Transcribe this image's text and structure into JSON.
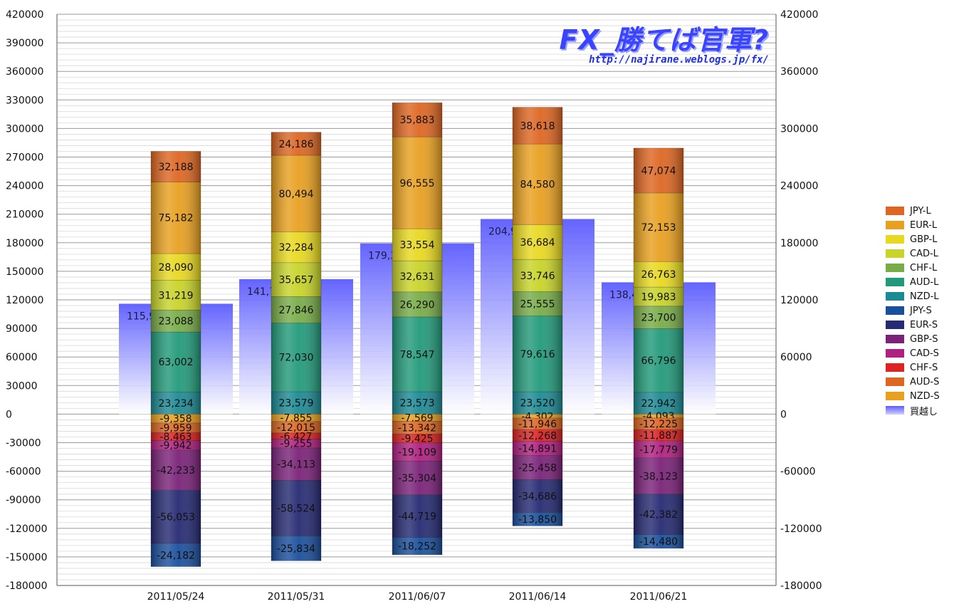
{
  "brand": {
    "title": "FX_勝てば官軍?",
    "url": "http://najirane.weblogs.jp/fx/"
  },
  "chart_data": {
    "type": "bar",
    "stacked": true,
    "categories": [
      "2011/05/24",
      "2011/05/31",
      "2011/06/07",
      "2011/06/14",
      "2011/06/21"
    ],
    "ylim": [
      -180000,
      420000
    ],
    "y_ticks_left": [
      420000,
      390000,
      360000,
      330000,
      300000,
      270000,
      240000,
      210000,
      180000,
      150000,
      120000,
      90000,
      60000,
      30000,
      0,
      -30000,
      -60000,
      -90000,
      -120000,
      -150000,
      -180000
    ],
    "y_ticks_right": [
      420000,
      360000,
      300000,
      240000,
      180000,
      120000,
      60000,
      0,
      -60000,
      -120000,
      -180000
    ],
    "grid": true,
    "legend_position": "right",
    "series": [
      {
        "name": "JPY-L",
        "color": "#dd6622",
        "values": [
          0,
          0,
          0,
          0,
          0
        ]
      },
      {
        "name": "EUR-L",
        "color": "#e8a020",
        "values": [
          0,
          0,
          0,
          0,
          0
        ]
      },
      {
        "name": "GBP-L",
        "color": "#e8d820",
        "values": [
          0,
          0,
          0,
          0,
          0
        ]
      },
      {
        "name": "CAD-L",
        "color": "#c8d428",
        "values": [
          0,
          0,
          0,
          0,
          0
        ]
      },
      {
        "name": "CHF-L",
        "color": "#78ac48",
        "values": [
          0,
          0,
          0,
          0,
          0
        ]
      },
      {
        "name": "AUD-L",
        "color": "#229a7a",
        "values": [
          0,
          0,
          0,
          0,
          0
        ]
      },
      {
        "name": "NZD-L",
        "color": "#1c8a94",
        "values": [
          0,
          0,
          0,
          0,
          0
        ]
      },
      {
        "name": "JPY-S",
        "color": "#1a4f9c",
        "values": [
          0,
          0,
          0,
          0,
          0
        ]
      },
      {
        "name": "EUR-S",
        "color": "#252a72",
        "values": [
          0,
          0,
          0,
          0,
          0
        ]
      },
      {
        "name": "GBP-S",
        "color": "#7a2278",
        "values": [
          0,
          0,
          0,
          0,
          0
        ]
      },
      {
        "name": "CAD-S",
        "color": "#b02080",
        "values": [
          0,
          0,
          0,
          0,
          0
        ]
      },
      {
        "name": "CHF-S",
        "color": "#dd2222",
        "values": [
          0,
          0,
          0,
          0,
          0
        ]
      },
      {
        "name": "AUD-S",
        "color": "#dd6622",
        "values": [
          0,
          0,
          0,
          0,
          0
        ]
      },
      {
        "name": "NZD-S",
        "color": "#e8a020",
        "values": [
          0,
          0,
          0,
          0,
          0
        ]
      },
      {
        "name": "買越し",
        "color": "#7a7aff",
        "values": [
          115913,
          141753,
          179313,
          204918,
          138442
        ]
      }
    ],
    "long_stacks": [
      [
        {
          "value": 23234,
          "label": "23,234",
          "color": "#1c8a94"
        },
        {
          "value": 63002,
          "label": "63,002",
          "color": "#229a7a"
        },
        {
          "value": 23088,
          "label": "23,088",
          "color": "#78ac48"
        },
        {
          "value": 31219,
          "label": "31,219",
          "color": "#c8d428"
        },
        {
          "value": 28090,
          "label": "28,090",
          "color": "#e8d820"
        },
        {
          "value": 75182,
          "label": "75,182",
          "color": "#e8a020"
        },
        {
          "value": 32188,
          "label": "32,188",
          "color": "#dd6622"
        }
      ],
      [
        {
          "value": 23579,
          "label": "23,579",
          "color": "#1c8a94"
        },
        {
          "value": 72030,
          "label": "72,030",
          "color": "#229a7a"
        },
        {
          "value": 27846,
          "label": "27,846",
          "color": "#78ac48"
        },
        {
          "value": 35657,
          "label": "35,657",
          "color": "#c8d428"
        },
        {
          "value": 32284,
          "label": "32,284",
          "color": "#e8d820"
        },
        {
          "value": 80494,
          "label": "80,494",
          "color": "#e8a020"
        },
        {
          "value": 24186,
          "label": "24,186",
          "color": "#dd6622"
        }
      ],
      [
        {
          "value": 23573,
          "label": "23,573",
          "color": "#1c8a94"
        },
        {
          "value": 78547,
          "label": "78,547",
          "color": "#229a7a"
        },
        {
          "value": 26290,
          "label": "26,290",
          "color": "#78ac48"
        },
        {
          "value": 32631,
          "label": "32,631",
          "color": "#c8d428"
        },
        {
          "value": 33554,
          "label": "33,554",
          "color": "#e8d820"
        },
        {
          "value": 96555,
          "label": "96,555",
          "color": "#e8a020"
        },
        {
          "value": 35883,
          "label": "35,883",
          "color": "#dd6622"
        }
      ],
      [
        {
          "value": 23520,
          "label": "23,520",
          "color": "#1c8a94"
        },
        {
          "value": 79616,
          "label": "79,616",
          "color": "#229a7a"
        },
        {
          "value": 25555,
          "label": "25,555",
          "color": "#78ac48"
        },
        {
          "value": 33746,
          "label": "33,746",
          "color": "#c8d428"
        },
        {
          "value": 36684,
          "label": "36,684",
          "color": "#e8d820"
        },
        {
          "value": 84580,
          "label": "84,580",
          "color": "#e8a020"
        },
        {
          "value": 38618,
          "label": "38,618",
          "color": "#dd6622"
        }
      ],
      [
        {
          "value": 22942,
          "label": "22,942",
          "color": "#1c8a94"
        },
        {
          "value": 66796,
          "label": "66,796",
          "color": "#229a7a"
        },
        {
          "value": 23700,
          "label": "23,700",
          "color": "#78ac48"
        },
        {
          "value": 19983,
          "label": "19,983",
          "color": "#c8d428"
        },
        {
          "value": 26763,
          "label": "26,763",
          "color": "#e8d820"
        },
        {
          "value": 72153,
          "label": "72,153",
          "color": "#e8a020"
        },
        {
          "value": 47074,
          "label": "47,074",
          "color": "#dd6622"
        }
      ]
    ],
    "short_stacks": [
      [
        {
          "value": -9358,
          "label": "-9,358",
          "color": "#e8a020"
        },
        {
          "value": -9959,
          "label": "-9,959",
          "color": "#dd6622"
        },
        {
          "value": -8463,
          "label": "-8,463",
          "color": "#dd2222"
        },
        {
          "value": -9942,
          "label": "-9,942",
          "color": "#b02080"
        },
        {
          "value": -42233,
          "label": "-42,233",
          "color": "#7a2278"
        },
        {
          "value": -56053,
          "label": "-56,053",
          "color": "#252a72"
        },
        {
          "value": -24182,
          "label": "-24,182",
          "color": "#1a4f9c"
        }
      ],
      [
        {
          "value": -7855,
          "label": "-7,855",
          "color": "#e8a020"
        },
        {
          "value": -12015,
          "label": "-12,015",
          "color": "#dd6622"
        },
        {
          "value": -6427,
          "label": "-6,427",
          "color": "#dd2222"
        },
        {
          "value": -9255,
          "label": "-9,255",
          "color": "#b02080"
        },
        {
          "value": -34113,
          "label": "-34,113",
          "color": "#7a2278"
        },
        {
          "value": -58524,
          "label": "-58,524",
          "color": "#252a72"
        },
        {
          "value": -25834,
          "label": "-25,834",
          "color": "#1a4f9c"
        }
      ],
      [
        {
          "value": -7569,
          "label": "-7,569",
          "color": "#e8a020"
        },
        {
          "value": -13342,
          "label": "-13,342",
          "color": "#dd6622"
        },
        {
          "value": -9425,
          "label": "-9,425",
          "color": "#dd2222"
        },
        {
          "value": -19109,
          "label": "-19,109",
          "color": "#b02080"
        },
        {
          "value": -35304,
          "label": "-35,304",
          "color": "#7a2278"
        },
        {
          "value": -44719,
          "label": "-44,719",
          "color": "#252a72"
        },
        {
          "value": -18252,
          "label": "-18,252",
          "color": "#1a4f9c"
        }
      ],
      [
        {
          "value": -4302,
          "label": "-4,302",
          "color": "#e8a020"
        },
        {
          "value": -11946,
          "label": "-11,946",
          "color": "#dd6622"
        },
        {
          "value": -12268,
          "label": "-12,268",
          "color": "#dd2222"
        },
        {
          "value": -14891,
          "label": "-14,891",
          "color": "#b02080"
        },
        {
          "value": -25458,
          "label": "-25,458",
          "color": "#7a2278"
        },
        {
          "value": -34686,
          "label": "-34,686",
          "color": "#252a72"
        },
        {
          "value": -13850,
          "label": "-13,850",
          "color": "#1a4f9c"
        }
      ],
      [
        {
          "value": -4093,
          "label": "-4,093",
          "color": "#e8a020"
        },
        {
          "value": -12225,
          "label": "-12,225",
          "color": "#dd6622"
        },
        {
          "value": -11887,
          "label": "-11,887",
          "color": "#dd2222"
        },
        {
          "value": -17779,
          "label": "-17,779",
          "color": "#b02080"
        },
        {
          "value": -38123,
          "label": "-38,123",
          "color": "#7a2278"
        },
        {
          "value": -42382,
          "label": "-42,382",
          "color": "#252a72"
        },
        {
          "value": -14480,
          "label": "-14,480",
          "color": "#1a4f9c"
        }
      ]
    ],
    "net": [
      {
        "value": 115913,
        "label": "115,913"
      },
      {
        "value": 141753,
        "label": "141,753"
      },
      {
        "value": 179313,
        "label": "179,313"
      },
      {
        "value": 204918,
        "label": "204,918"
      },
      {
        "value": 138442,
        "label": "138,442"
      }
    ]
  }
}
